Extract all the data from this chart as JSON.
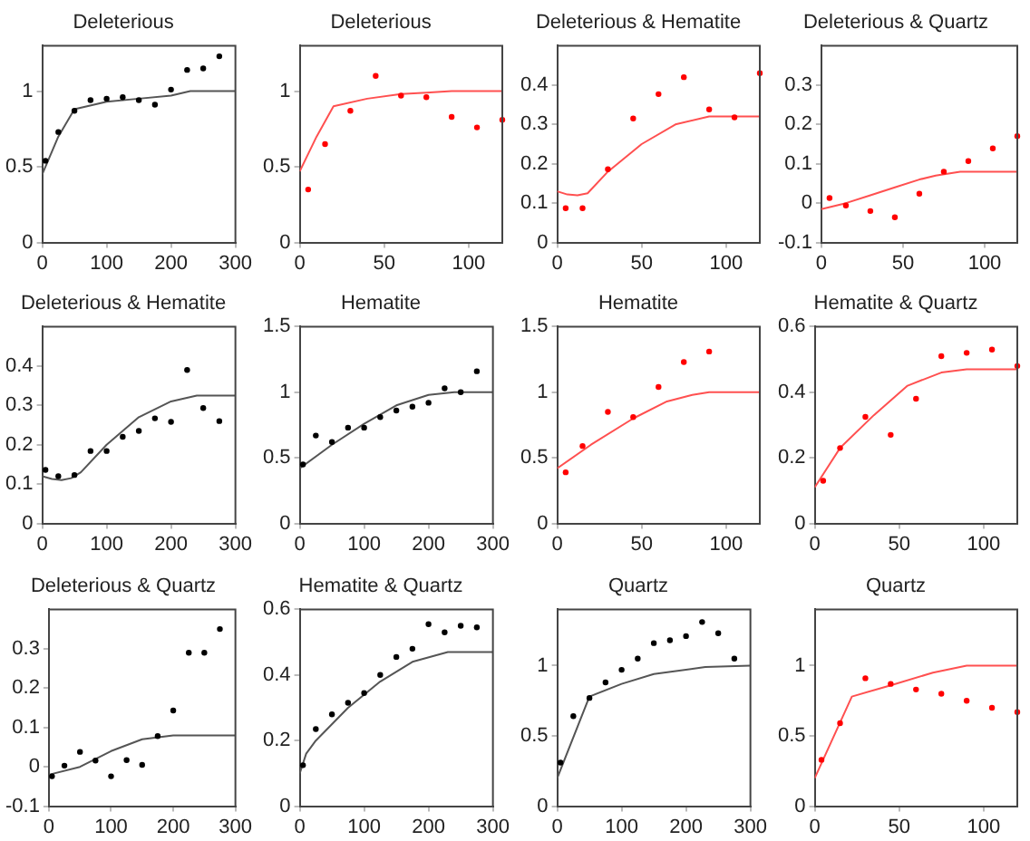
{
  "chart_data": [
    {
      "type": "scatter",
      "title": "Deleterious",
      "xlim": [
        0,
        300
      ],
      "xticks": [
        0,
        100,
        200,
        300
      ],
      "ylim": [
        0,
        1.3
      ],
      "yticks": [
        0,
        0.5,
        1
      ],
      "grid": false,
      "legend": false,
      "series": [
        {
          "type": "scatter",
          "marker": "circle",
          "color": "#000000",
          "x": [
            5,
            25,
            50,
            75,
            100,
            125,
            150,
            175,
            200,
            225,
            250,
            275
          ],
          "values": [
            0.54,
            0.73,
            0.87,
            0.94,
            0.95,
            0.96,
            0.94,
            0.91,
            1.01,
            1.14,
            1.15,
            1.23
          ]
        },
        {
          "type": "line",
          "marker": "none",
          "color": "#555555",
          "x": [
            0,
            25,
            50,
            100,
            150,
            200,
            230,
            300
          ],
          "values": [
            0.45,
            0.7,
            0.88,
            0.93,
            0.95,
            0.97,
            1.0,
            1.0
          ]
        }
      ]
    },
    {
      "type": "scatter",
      "title": "Deleterious",
      "xlim": [
        0,
        120
      ],
      "xticks": [
        0,
        50,
        100
      ],
      "ylim": [
        0,
        1.3
      ],
      "yticks": [
        0,
        0.5,
        1
      ],
      "grid": false,
      "legend": false,
      "series": [
        {
          "type": "scatter",
          "marker": "circle",
          "color": "#ff0000",
          "x": [
            5,
            15,
            30,
            45,
            60,
            75,
            90,
            105,
            120
          ],
          "values": [
            0.35,
            0.65,
            0.87,
            1.1,
            0.97,
            0.96,
            0.83,
            0.76,
            0.81
          ]
        },
        {
          "type": "line",
          "marker": "none",
          "color": "#ff5050",
          "x": [
            0,
            10,
            20,
            40,
            60,
            75,
            90,
            120
          ],
          "values": [
            0.47,
            0.7,
            0.9,
            0.95,
            0.98,
            0.99,
            1.0,
            1.0
          ]
        }
      ]
    },
    {
      "type": "scatter",
      "title": "Deleterious & Hematite",
      "xlim": [
        0,
        120
      ],
      "xticks": [
        0,
        50,
        100
      ],
      "ylim": [
        0,
        0.5
      ],
      "yticks": [
        0,
        0.1,
        0.2,
        0.3,
        0.4
      ],
      "grid": false,
      "legend": false,
      "series": [
        {
          "type": "scatter",
          "marker": "circle",
          "color": "#ff0000",
          "x": [
            5,
            15,
            30,
            45,
            60,
            75,
            90,
            105,
            120
          ],
          "values": [
            0.087,
            0.087,
            0.186,
            0.315,
            0.377,
            0.42,
            0.338,
            0.318,
            0.43
          ]
        },
        {
          "type": "line",
          "marker": "none",
          "color": "#ff5050",
          "x": [
            0,
            6,
            12,
            18,
            30,
            50,
            70,
            90,
            120
          ],
          "values": [
            0.13,
            0.122,
            0.12,
            0.125,
            0.18,
            0.25,
            0.3,
            0.32,
            0.32
          ]
        }
      ]
    },
    {
      "type": "scatter",
      "title": "Deleterious & Quartz",
      "xlim": [
        0,
        120
      ],
      "xticks": [
        0,
        50,
        100
      ],
      "ylim": [
        -0.1,
        0.4
      ],
      "yticks": [
        -0.1,
        0,
        0.1,
        0.2,
        0.3
      ],
      "grid": false,
      "legend": false,
      "series": [
        {
          "type": "scatter",
          "marker": "circle",
          "color": "#ff0000",
          "x": [
            5,
            15,
            30,
            45,
            60,
            75,
            90,
            105,
            120
          ],
          "values": [
            0.013,
            -0.006,
            -0.02,
            -0.036,
            0.024,
            0.08,
            0.107,
            0.139,
            0.17
          ]
        },
        {
          "type": "line",
          "marker": "none",
          "color": "#ff5050",
          "x": [
            0,
            15,
            30,
            45,
            60,
            70,
            85,
            120
          ],
          "values": [
            -0.015,
            0.0,
            0.02,
            0.04,
            0.06,
            0.07,
            0.08,
            0.08
          ]
        }
      ]
    },
    {
      "type": "scatter",
      "title": "Deleterious & Hematite",
      "xlim": [
        0,
        300
      ],
      "xticks": [
        0,
        100,
        200,
        300
      ],
      "ylim": [
        0,
        0.5
      ],
      "yticks": [
        0,
        0.1,
        0.2,
        0.3,
        0.4
      ],
      "grid": false,
      "legend": false,
      "series": [
        {
          "type": "scatter",
          "marker": "circle",
          "color": "#000000",
          "x": [
            5,
            25,
            50,
            75,
            100,
            125,
            150,
            175,
            200,
            225,
            250,
            275
          ],
          "values": [
            0.136,
            0.12,
            0.123,
            0.184,
            0.184,
            0.22,
            0.235,
            0.267,
            0.258,
            0.39,
            0.293,
            0.26
          ]
        },
        {
          "type": "line",
          "marker": "none",
          "color": "#555555",
          "x": [
            0,
            15,
            30,
            45,
            60,
            100,
            150,
            200,
            240,
            300
          ],
          "values": [
            0.12,
            0.113,
            0.11,
            0.115,
            0.13,
            0.2,
            0.27,
            0.31,
            0.325,
            0.325
          ]
        }
      ]
    },
    {
      "type": "scatter",
      "title": "Hematite",
      "xlim": [
        0,
        300
      ],
      "xticks": [
        0,
        100,
        200,
        300
      ],
      "ylim": [
        0,
        1.5
      ],
      "yticks": [
        0,
        0.5,
        1,
        1.5
      ],
      "grid": false,
      "legend": false,
      "series": [
        {
          "type": "scatter",
          "marker": "circle",
          "color": "#000000",
          "x": [
            5,
            25,
            50,
            75,
            100,
            125,
            150,
            175,
            200,
            225,
            250,
            275
          ],
          "values": [
            0.45,
            0.67,
            0.62,
            0.73,
            0.73,
            0.81,
            0.86,
            0.89,
            0.92,
            1.03,
            1.0,
            1.16
          ]
        },
        {
          "type": "line",
          "marker": "none",
          "color": "#555555",
          "x": [
            0,
            50,
            100,
            150,
            200,
            240,
            300
          ],
          "values": [
            0.42,
            0.6,
            0.76,
            0.9,
            0.98,
            1.0,
            1.0
          ]
        }
      ]
    },
    {
      "type": "scatter",
      "title": "Hematite",
      "xlim": [
        0,
        120
      ],
      "xticks": [
        0,
        50,
        100
      ],
      "ylim": [
        0,
        1.5
      ],
      "yticks": [
        0,
        0.5,
        1,
        1.5
      ],
      "grid": false,
      "legend": false,
      "series": [
        {
          "type": "scatter",
          "marker": "circle",
          "color": "#ff0000",
          "x": [
            5,
            15,
            30,
            45,
            60,
            75,
            90
          ],
          "values": [
            0.39,
            0.59,
            0.85,
            0.81,
            1.04,
            1.23,
            1.31
          ]
        },
        {
          "type": "line",
          "marker": "none",
          "color": "#ff5050",
          "x": [
            0,
            20,
            45,
            65,
            80,
            90,
            120
          ],
          "values": [
            0.42,
            0.6,
            0.8,
            0.93,
            0.98,
            1.0,
            1.0
          ]
        }
      ]
    },
    {
      "type": "scatter",
      "title": "Hematite & Quartz",
      "xlim": [
        0,
        120
      ],
      "xticks": [
        0,
        50,
        100
      ],
      "ylim": [
        0,
        0.6
      ],
      "yticks": [
        0,
        0.2,
        0.4,
        0.6
      ],
      "grid": false,
      "legend": false,
      "series": [
        {
          "type": "scatter",
          "marker": "circle",
          "color": "#ff0000",
          "x": [
            5,
            15,
            30,
            45,
            60,
            75,
            90,
            105,
            120
          ],
          "values": [
            0.13,
            0.23,
            0.325,
            0.27,
            0.38,
            0.51,
            0.52,
            0.53,
            0.48
          ]
        },
        {
          "type": "line",
          "marker": "none",
          "color": "#ff5050",
          "x": [
            0,
            15,
            35,
            55,
            75,
            90,
            120
          ],
          "values": [
            0.11,
            0.23,
            0.33,
            0.42,
            0.46,
            0.47,
            0.47
          ]
        }
      ]
    },
    {
      "type": "scatter",
      "title": "Deleterious & Quartz",
      "xlim": [
        0,
        300
      ],
      "xticks": [
        0,
        100,
        200,
        300
      ],
      "ylim": [
        -0.1,
        0.4
      ],
      "yticks": [
        -0.1,
        0,
        0.1,
        0.2,
        0.3
      ],
      "grid": false,
      "legend": false,
      "series": [
        {
          "type": "scatter",
          "marker": "circle",
          "color": "#000000",
          "x": [
            5,
            25,
            50,
            75,
            100,
            125,
            150,
            175,
            200,
            225,
            250,
            275
          ],
          "values": [
            -0.024,
            0.003,
            0.038,
            0.016,
            -0.024,
            0.017,
            0.005,
            0.078,
            0.143,
            0.29,
            0.29,
            0.35
          ]
        },
        {
          "type": "line",
          "marker": "none",
          "color": "#555555",
          "x": [
            0,
            50,
            100,
            150,
            200,
            300
          ],
          "values": [
            -0.02,
            0.0,
            0.04,
            0.07,
            0.08,
            0.08
          ]
        }
      ]
    },
    {
      "type": "scatter",
      "title": "Hematite & Quartz",
      "xlim": [
        0,
        300
      ],
      "xticks": [
        0,
        100,
        200,
        300
      ],
      "ylim": [
        0,
        0.6
      ],
      "yticks": [
        0,
        0.2,
        0.4,
        0.6
      ],
      "grid": false,
      "legend": false,
      "series": [
        {
          "type": "scatter",
          "marker": "circle",
          "color": "#000000",
          "x": [
            5,
            25,
            50,
            75,
            100,
            125,
            150,
            175,
            200,
            225,
            250,
            275
          ],
          "values": [
            0.125,
            0.235,
            0.28,
            0.315,
            0.345,
            0.4,
            0.455,
            0.48,
            0.555,
            0.53,
            0.55,
            0.545
          ]
        },
        {
          "type": "line",
          "marker": "none",
          "color": "#555555",
          "x": [
            0,
            10,
            25,
            75,
            125,
            175,
            230,
            300
          ],
          "values": [
            0.1,
            0.16,
            0.2,
            0.3,
            0.38,
            0.44,
            0.47,
            0.47
          ]
        }
      ]
    },
    {
      "type": "scatter",
      "title": "Quartz",
      "xlim": [
        0,
        300
      ],
      "xticks": [
        0,
        100,
        200,
        300
      ],
      "ylim": [
        0,
        1.4
      ],
      "yticks": [
        0,
        0.5,
        1
      ],
      "grid": false,
      "legend": false,
      "series": [
        {
          "type": "scatter",
          "marker": "circle",
          "color": "#000000",
          "x": [
            5,
            25,
            50,
            75,
            100,
            125,
            150,
            175,
            200,
            225,
            250,
            275
          ],
          "values": [
            0.31,
            0.64,
            0.77,
            0.88,
            0.97,
            1.05,
            1.16,
            1.18,
            1.21,
            1.31,
            1.23,
            1.05
          ]
        },
        {
          "type": "line",
          "marker": "none",
          "color": "#555555",
          "x": [
            0,
            50,
            100,
            150,
            230,
            300
          ],
          "values": [
            0.2,
            0.78,
            0.87,
            0.94,
            0.99,
            1.0
          ]
        }
      ]
    },
    {
      "type": "scatter",
      "title": "Quartz",
      "xlim": [
        0,
        120
      ],
      "xticks": [
        0,
        50,
        100
      ],
      "ylim": [
        0,
        1.4
      ],
      "yticks": [
        0,
        0.5,
        1
      ],
      "grid": false,
      "legend": false,
      "series": [
        {
          "type": "scatter",
          "marker": "circle",
          "color": "#ff0000",
          "x": [
            4,
            15,
            30,
            45,
            60,
            75,
            90,
            105,
            120
          ],
          "values": [
            0.33,
            0.59,
            0.91,
            0.87,
            0.83,
            0.8,
            0.75,
            0.7,
            0.67
          ]
        },
        {
          "type": "line",
          "marker": "none",
          "color": "#ff5050",
          "x": [
            0,
            22,
            45,
            70,
            90,
            120
          ],
          "values": [
            0.2,
            0.78,
            0.86,
            0.95,
            1.0,
            1.0
          ]
        }
      ]
    }
  ]
}
